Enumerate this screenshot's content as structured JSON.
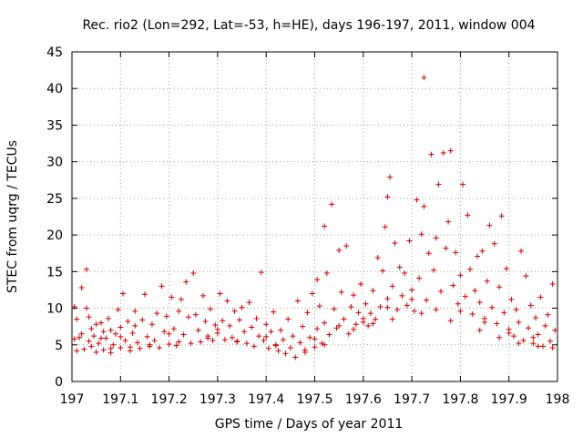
{
  "chart_data": {
    "type": "scatter",
    "title": "Rec. rio2 (Lon=292, Lat=-53, h=HE), days 196-197, 2011, window 004",
    "xlabel": "GPS time / Days of year 2011",
    "ylabel": "STEC from uqrg / TECUs",
    "xlim": [
      197,
      198
    ],
    "ylim": [
      0,
      45
    ],
    "xticks": [
      "197",
      "197.1",
      "197.2",
      "197.3",
      "197.4",
      "197.5",
      "197.6",
      "197.7",
      "197.8",
      "197.9",
      "198"
    ],
    "yticks": [
      "0",
      "5",
      "10",
      "15",
      "20",
      "25",
      "30",
      "35",
      "40",
      "45"
    ],
    "grid": true,
    "legend": "none",
    "marker": "plus",
    "series_color": "#cc0000",
    "points": [
      [
        197.005,
        5.8
      ],
      [
        197.005,
        10.2
      ],
      [
        197.01,
        8.5
      ],
      [
        197.01,
        4.2
      ],
      [
        197.015,
        6.0
      ],
      [
        197.02,
        6.5
      ],
      [
        197.02,
        12.8
      ],
      [
        197.025,
        4.4
      ],
      [
        197.03,
        15.3
      ],
      [
        197.03,
        10.0
      ],
      [
        197.035,
        8.8
      ],
      [
        197.035,
        5.5
      ],
      [
        197.04,
        7.2
      ],
      [
        197.04,
        4.8
      ],
      [
        197.045,
        6.2
      ],
      [
        197.05,
        7.8
      ],
      [
        197.05,
        4.0
      ],
      [
        197.055,
        5.2
      ],
      [
        197.06,
        8.0
      ],
      [
        197.065,
        6.8
      ],
      [
        197.065,
        4.3
      ],
      [
        197.07,
        5.9
      ],
      [
        197.075,
        8.6
      ],
      [
        197.08,
        7.0
      ],
      [
        197.08,
        3.9
      ],
      [
        197.085,
        5.0
      ],
      [
        197.09,
        6.5
      ],
      [
        197.095,
        9.8
      ],
      [
        197.1,
        4.6
      ],
      [
        197.1,
        7.4
      ],
      [
        197.105,
        12.0
      ],
      [
        197.11,
        5.6
      ],
      [
        197.115,
        8.2
      ],
      [
        197.12,
        4.2
      ],
      [
        197.125,
        6.6
      ],
      [
        197.13,
        9.6
      ],
      [
        197.13,
        7.6
      ],
      [
        197.135,
        5.3
      ],
      [
        197.14,
        4.5
      ],
      [
        197.145,
        8.4
      ],
      [
        197.15,
        11.9
      ],
      [
        197.155,
        6.1
      ],
      [
        197.16,
        4.8
      ],
      [
        197.165,
        7.8
      ],
      [
        197.17,
        5.6
      ],
      [
        197.175,
        9.3
      ],
      [
        197.18,
        4.6
      ],
      [
        197.185,
        13.0
      ],
      [
        197.19,
        6.8
      ],
      [
        197.195,
        8.9
      ],
      [
        197.2,
        5.1
      ],
      [
        197.205,
        11.5
      ],
      [
        197.21,
        7.2
      ],
      [
        197.215,
        4.9
      ],
      [
        197.22,
        9.6
      ],
      [
        197.225,
        11.2
      ],
      [
        197.23,
        6.4
      ],
      [
        197.235,
        13.6
      ],
      [
        197.24,
        8.8
      ],
      [
        197.245,
        5.2
      ],
      [
        197.25,
        14.8
      ],
      [
        197.255,
        9.1
      ],
      [
        197.26,
        7.0
      ],
      [
        197.265,
        5.4
      ],
      [
        197.27,
        11.7
      ],
      [
        197.275,
        8.2
      ],
      [
        197.28,
        6.2
      ],
      [
        197.285,
        9.9
      ],
      [
        197.29,
        5.6
      ],
      [
        197.295,
        7.7
      ],
      [
        197.3,
        6.6
      ],
      [
        197.305,
        12.0
      ],
      [
        197.31,
        8.3
      ],
      [
        197.315,
        5.7
      ],
      [
        197.32,
        11.0
      ],
      [
        197.325,
        7.6
      ],
      [
        197.33,
        6.0
      ],
      [
        197.335,
        9.6
      ],
      [
        197.34,
        5.4
      ],
      [
        197.345,
        8.4
      ],
      [
        197.35,
        10.1
      ],
      [
        197.355,
        6.8
      ],
      [
        197.36,
        5.2
      ],
      [
        197.365,
        10.8
      ],
      [
        197.37,
        7.4
      ],
      [
        197.375,
        4.8
      ],
      [
        197.38,
        8.6
      ],
      [
        197.385,
        6.2
      ],
      [
        197.39,
        14.9
      ],
      [
        197.395,
        5.6
      ],
      [
        197.4,
        7.8
      ],
      [
        197.405,
        4.5
      ],
      [
        197.41,
        6.8
      ],
      [
        197.415,
        9.5
      ],
      [
        197.42,
        5.0
      ],
      [
        197.425,
        4.2
      ],
      [
        197.43,
        7.0
      ],
      [
        197.435,
        5.7
      ],
      [
        197.44,
        3.8
      ],
      [
        197.445,
        8.5
      ],
      [
        197.45,
        4.6
      ],
      [
        197.455,
        6.2
      ],
      [
        197.46,
        3.3
      ],
      [
        197.465,
        11.0
      ],
      [
        197.47,
        5.3
      ],
      [
        197.475,
        7.5
      ],
      [
        197.48,
        4.0
      ],
      [
        197.485,
        9.4
      ],
      [
        197.49,
        6.0
      ],
      [
        197.495,
        12.0
      ],
      [
        197.5,
        4.7
      ],
      [
        197.505,
        7.2
      ],
      [
        197.505,
        13.9
      ],
      [
        197.51,
        10.3
      ],
      [
        197.515,
        5.2
      ],
      [
        197.52,
        21.2
      ],
      [
        197.52,
        8.0
      ],
      [
        197.525,
        14.8
      ],
      [
        197.53,
        6.4
      ],
      [
        197.535,
        24.2
      ],
      [
        197.54,
        9.9
      ],
      [
        197.545,
        7.3
      ],
      [
        197.55,
        17.9
      ],
      [
        197.555,
        12.2
      ],
      [
        197.56,
        8.5
      ],
      [
        197.565,
        18.5
      ],
      [
        197.57,
        6.5
      ],
      [
        197.575,
        10.2
      ],
      [
        197.58,
        11.8
      ],
      [
        197.585,
        7.8
      ],
      [
        197.59,
        9.4
      ],
      [
        197.595,
        13.3
      ],
      [
        197.6,
        8.1
      ],
      [
        197.605,
        10.6
      ],
      [
        197.61,
        7.6
      ],
      [
        197.615,
        9.3
      ],
      [
        197.62,
        12.4
      ],
      [
        197.625,
        8.5
      ],
      [
        197.63,
        16.9
      ],
      [
        197.635,
        10.2
      ],
      [
        197.64,
        15.1
      ],
      [
        197.645,
        21.1
      ],
      [
        197.65,
        11.3
      ],
      [
        197.65,
        25.2
      ],
      [
        197.655,
        27.9
      ],
      [
        197.66,
        13.0
      ],
      [
        197.665,
        18.9
      ],
      [
        197.67,
        9.8
      ],
      [
        197.675,
        15.6
      ],
      [
        197.68,
        11.7
      ],
      [
        197.685,
        14.8
      ],
      [
        197.69,
        10.4
      ],
      [
        197.695,
        19.2
      ],
      [
        197.7,
        12.5
      ],
      [
        197.705,
        9.6
      ],
      [
        197.71,
        24.8
      ],
      [
        197.715,
        14.1
      ],
      [
        197.72,
        20.1
      ],
      [
        197.725,
        23.9
      ],
      [
        197.725,
        41.5
      ],
      [
        197.73,
        11.1
      ],
      [
        197.735,
        17.5
      ],
      [
        197.74,
        31.0
      ],
      [
        197.745,
        15.2
      ],
      [
        197.75,
        19.6
      ],
      [
        197.755,
        26.9
      ],
      [
        197.76,
        12.3
      ],
      [
        197.765,
        31.2
      ],
      [
        197.77,
        18.2
      ],
      [
        197.775,
        21.8
      ],
      [
        197.78,
        31.5
      ],
      [
        197.785,
        13.1
      ],
      [
        197.79,
        17.6
      ],
      [
        197.795,
        10.6
      ],
      [
        197.8,
        14.5
      ],
      [
        197.805,
        26.9
      ],
      [
        197.81,
        11.6
      ],
      [
        197.815,
        22.7
      ],
      [
        197.82,
        15.3
      ],
      [
        197.825,
        9.2
      ],
      [
        197.83,
        12.4
      ],
      [
        197.835,
        17.1
      ],
      [
        197.84,
        10.8
      ],
      [
        197.845,
        17.8
      ],
      [
        197.85,
        8.6
      ],
      [
        197.855,
        13.7
      ],
      [
        197.86,
        21.3
      ],
      [
        197.865,
        10.1
      ],
      [
        197.87,
        18.8
      ],
      [
        197.875,
        7.9
      ],
      [
        197.88,
        12.9
      ],
      [
        197.885,
        22.6
      ],
      [
        197.89,
        9.4
      ],
      [
        197.895,
        15.4
      ],
      [
        197.9,
        7.1
      ],
      [
        197.905,
        11.2
      ],
      [
        197.91,
        6.2
      ],
      [
        197.915,
        9.8
      ],
      [
        197.92,
        8.1
      ],
      [
        197.925,
        17.8
      ],
      [
        197.93,
        5.6
      ],
      [
        197.935,
        14.4
      ],
      [
        197.94,
        7.3
      ],
      [
        197.945,
        10.4
      ],
      [
        197.95,
        5.2
      ],
      [
        197.955,
        8.7
      ],
      [
        197.96,
        6.4
      ],
      [
        197.965,
        11.5
      ],
      [
        197.97,
        4.8
      ],
      [
        197.975,
        7.6
      ],
      [
        197.98,
        9.1
      ],
      [
        197.985,
        5.5
      ],
      [
        197.99,
        13.3
      ],
      [
        197.995,
        7.0
      ],
      [
        197.06,
        5.9
      ],
      [
        197.1,
        6.1
      ],
      [
        197.2,
        6.5
      ],
      [
        197.3,
        7.1
      ],
      [
        197.4,
        6.1
      ],
      [
        197.5,
        5.8
      ],
      [
        197.55,
        7.6
      ],
      [
        197.6,
        8.6
      ],
      [
        197.65,
        10.1
      ],
      [
        197.7,
        11.2
      ],
      [
        197.75,
        9.8
      ],
      [
        197.8,
        9.6
      ],
      [
        197.85,
        8.1
      ],
      [
        197.9,
        6.6
      ],
      [
        197.95,
        6.0
      ],
      [
        197.08,
        4.5
      ],
      [
        197.12,
        4.7
      ],
      [
        197.16,
        5.0
      ],
      [
        197.22,
        5.4
      ],
      [
        197.28,
        5.9
      ],
      [
        197.34,
        5.5
      ],
      [
        197.42,
        4.9
      ],
      [
        197.48,
        4.3
      ],
      [
        197.52,
        5.0
      ],
      [
        197.58,
        7.1
      ],
      [
        197.62,
        7.9
      ],
      [
        197.66,
        8.5
      ],
      [
        197.72,
        9.3
      ],
      [
        197.78,
        8.3
      ],
      [
        197.84,
        7.0
      ],
      [
        197.88,
        6.0
      ],
      [
        197.92,
        5.2
      ],
      [
        197.96,
        4.8
      ],
      [
        197.99,
        4.6
      ]
    ]
  }
}
